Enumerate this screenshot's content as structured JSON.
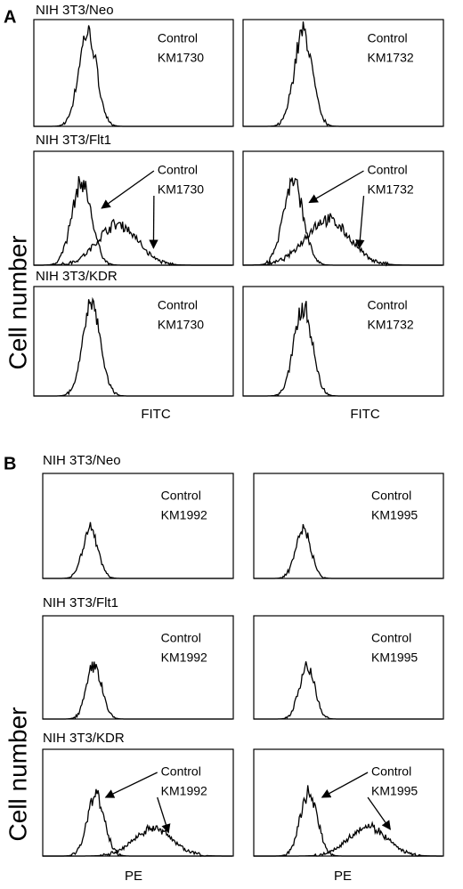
{
  "panels": [
    {
      "label": "A",
      "y_label": "Cell number",
      "x_labels": [
        "FITC",
        "FITC"
      ],
      "rows": [
        {
          "label": "NIH 3T3/Neo",
          "plots": [
            {
              "lines": [
                "Control",
                "KM1730"
              ]
            },
            {
              "lines": [
                "Control",
                "KM1732"
              ]
            }
          ]
        },
        {
          "label": "NIH 3T3/Flt1",
          "plots": [
            {
              "lines": [
                "Control",
                "KM1730"
              ]
            },
            {
              "lines": [
                "Control",
                "KM1732"
              ]
            }
          ]
        },
        {
          "label": "NIH 3T3/KDR",
          "plots": [
            {
              "lines": [
                "Control",
                "KM1730"
              ]
            },
            {
              "lines": [
                "Control",
                "KM1732"
              ]
            }
          ]
        }
      ]
    },
    {
      "label": "B",
      "y_label": "Cell number",
      "x_labels": [
        "PE",
        "PE"
      ],
      "rows": [
        {
          "label": "NIH 3T3/Neo",
          "plots": [
            {
              "lines": [
                "Control",
                "KM1992"
              ]
            },
            {
              "lines": [
                "Control",
                "KM1995"
              ]
            }
          ]
        },
        {
          "label": "NIH 3T3/Flt1",
          "plots": [
            {
              "lines": [
                "Control",
                "KM1992"
              ]
            },
            {
              "lines": [
                "Control",
                "KM1995"
              ]
            }
          ]
        },
        {
          "label": "NIH 3T3/KDR",
          "plots": [
            {
              "lines": [
                "Control",
                "KM1992"
              ]
            },
            {
              "lines": [
                "Control",
                "KM1995"
              ]
            }
          ]
        }
      ]
    }
  ]
}
